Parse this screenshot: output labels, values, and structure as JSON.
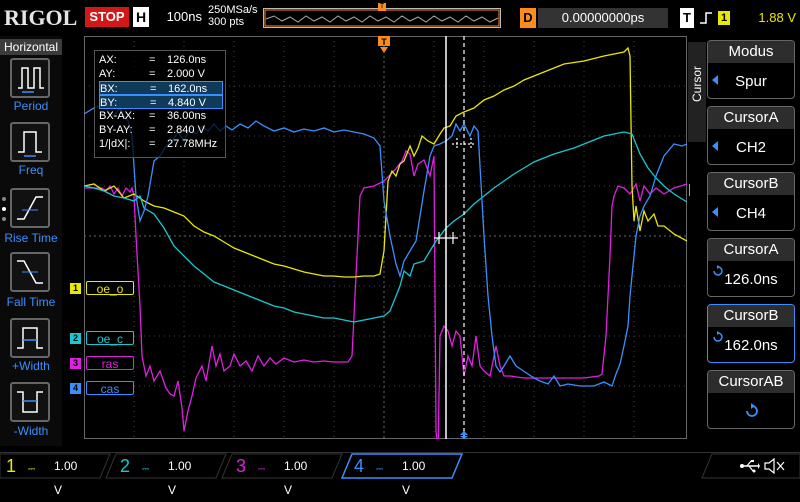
{
  "header": {
    "logo": "RIGOL",
    "run_state": "STOP",
    "timebase_label": "H",
    "timebase": "100ns",
    "sample_rate": "250MSa/s",
    "memory_depth": "300 pts",
    "delay_label": "D",
    "delay": "0.00000000ps",
    "trigger_label": "T",
    "trigger_source": "1",
    "trigger_level": "1.88 V"
  },
  "left_panel": {
    "title": "Horizontal",
    "items": [
      {
        "label": "Period"
      },
      {
        "label": "Freq"
      },
      {
        "label": "Rise Time"
      },
      {
        "label": "Fall Time"
      },
      {
        "label": "+Width"
      },
      {
        "label": "-Width"
      }
    ]
  },
  "cursor_info": {
    "rows": [
      {
        "key": "AX:",
        "value": "126.0ns",
        "highlight": false
      },
      {
        "key": "AY:",
        "value": "2.000 V",
        "highlight": false
      },
      {
        "key": "BX:",
        "value": "162.0ns",
        "highlight": true
      },
      {
        "key": "BY:",
        "value": "4.840 V",
        "highlight": true
      },
      {
        "key": "BX-AX:",
        "value": "36.00ns",
        "highlight": false
      },
      {
        "key": "BY-AY:",
        "value": "2.840 V",
        "highlight": false
      },
      {
        "key": "1/|dX|:",
        "value": "27.78MHz",
        "highlight": false
      }
    ],
    "eq": "="
  },
  "channels": [
    {
      "num": "1",
      "tag": "oe_o",
      "color": "#e8e800",
      "scale": "1.00 V"
    },
    {
      "num": "2",
      "tag": "oe_c",
      "color": "#18c8d0",
      "scale": "1.00 V"
    },
    {
      "num": "3",
      "tag": "ras",
      "color": "#e020e0",
      "scale": "1.00 V"
    },
    {
      "num": "4",
      "tag": "cas",
      "color": "#3a8fff",
      "scale": "1.00 V"
    }
  ],
  "right_panel": {
    "tab": "Cursor",
    "buttons": [
      {
        "title": "Modus",
        "value": "Spur"
      },
      {
        "title": "CursorA",
        "value": "CH2"
      },
      {
        "title": "CursorB",
        "value": "CH4"
      },
      {
        "title": "CursorA",
        "value": "126.0ns"
      },
      {
        "title": "CursorB",
        "value": "162.0ns"
      },
      {
        "title": "CursorAB",
        "value": ""
      }
    ]
  },
  "colors": {
    "ch1": "#e8e800",
    "ch2": "#18c8d0",
    "ch3": "#e020e0",
    "ch4": "#3a8fff",
    "accent": "#3a8fff",
    "trigger": "#ff8c1a",
    "stop": "#d01818"
  }
}
